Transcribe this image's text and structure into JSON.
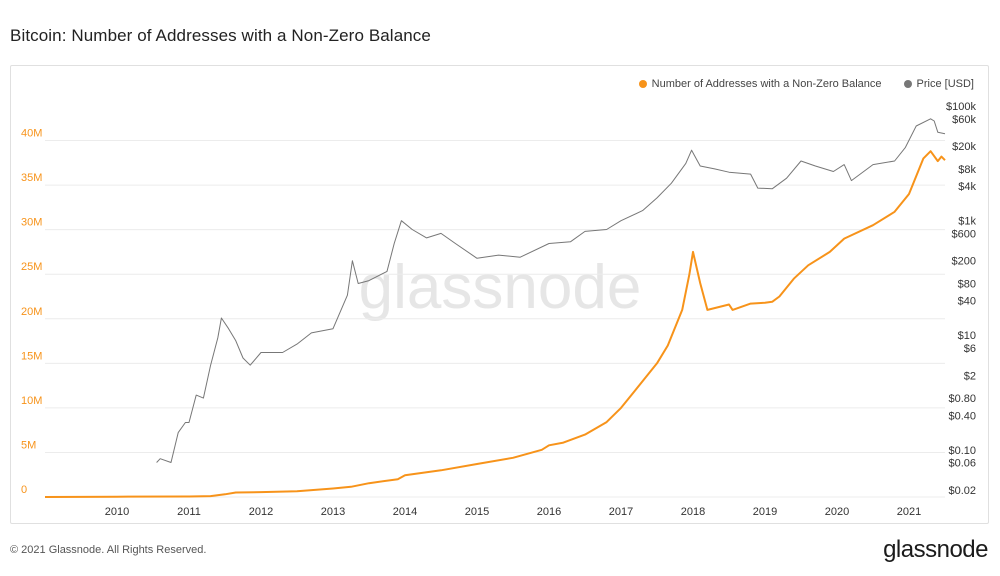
{
  "header": {
    "title": "Bitcoin: Number of Addresses with a Non-Zero Balance"
  },
  "watermark": "glassnode",
  "footer": {
    "copyright": "© 2021 Glassnode. All Rights Reserved.",
    "brand": "glassnode"
  },
  "chart_data": {
    "type": "line",
    "title": "Bitcoin: Number of Addresses with a Non-Zero Balance",
    "xlabel": "",
    "legend_position": "top-right",
    "grid": "horizontal",
    "x_ticks": [
      "2010",
      "2011",
      "2012",
      "2013",
      "2014",
      "2015",
      "2016",
      "2017",
      "2018",
      "2019",
      "2020",
      "2021"
    ],
    "xlim": [
      2009.0,
      2021.5
    ],
    "y_left": {
      "ticks": [
        0,
        5000000,
        10000000,
        15000000,
        20000000,
        25000000,
        30000000,
        35000000,
        40000000
      ],
      "tick_labels": [
        "0",
        "5M",
        "10M",
        "15M",
        "20M",
        "25M",
        "30M",
        "35M",
        "40M"
      ],
      "ylim": [
        0,
        45000000
      ],
      "color": "#f7931a"
    },
    "y_right": {
      "scale": "log",
      "ticks": [
        0.02,
        0.06,
        0.1,
        0.4,
        0.8,
        2,
        6,
        10,
        40,
        80,
        200,
        600,
        1000,
        4000,
        8000,
        20000,
        60000,
        100000
      ],
      "tick_labels": [
        "$0.02",
        "$0.06",
        "$0.10",
        "$0.40",
        "$0.80",
        "$2",
        "$6",
        "$10",
        "$40",
        "$80",
        "$200",
        "$600",
        "$1k",
        "$4k",
        "$8k",
        "$20k",
        "$60k",
        "$100k"
      ],
      "ylim": [
        0.015,
        150000
      ],
      "color": "#555555"
    },
    "series": [
      {
        "name": "Number of Addresses with a Non-Zero Balance",
        "axis": "left",
        "color": "#f7931a",
        "points": [
          [
            2009.0,
            0
          ],
          [
            2010.0,
            30000
          ],
          [
            2011.0,
            60000
          ],
          [
            2011.3,
            100000
          ],
          [
            2011.5,
            300000
          ],
          [
            2011.65,
            500000
          ],
          [
            2012.0,
            550000
          ],
          [
            2012.5,
            650000
          ],
          [
            2013.0,
            950000
          ],
          [
            2013.25,
            1150000
          ],
          [
            2013.5,
            1550000
          ],
          [
            2013.9,
            2000000
          ],
          [
            2014.0,
            2450000
          ],
          [
            2014.5,
            3000000
          ],
          [
            2015.0,
            3700000
          ],
          [
            2015.5,
            4400000
          ],
          [
            2015.9,
            5300000
          ],
          [
            2016.0,
            5800000
          ],
          [
            2016.2,
            6100000
          ],
          [
            2016.5,
            7000000
          ],
          [
            2016.8,
            8400000
          ],
          [
            2017.0,
            10000000
          ],
          [
            2017.2,
            12000000
          ],
          [
            2017.5,
            15000000
          ],
          [
            2017.65,
            17000000
          ],
          [
            2017.85,
            21000000
          ],
          [
            2017.95,
            25000000
          ],
          [
            2018.0,
            27500000
          ],
          [
            2018.1,
            24000000
          ],
          [
            2018.2,
            21000000
          ],
          [
            2018.25,
            21100000
          ],
          [
            2018.5,
            21600000
          ],
          [
            2018.55,
            21000000
          ],
          [
            2018.8,
            21700000
          ],
          [
            2019.0,
            21800000
          ],
          [
            2019.1,
            21900000
          ],
          [
            2019.2,
            22500000
          ],
          [
            2019.4,
            24500000
          ],
          [
            2019.6,
            26000000
          ],
          [
            2019.9,
            27500000
          ],
          [
            2020.1,
            29000000
          ],
          [
            2020.5,
            30500000
          ],
          [
            2020.8,
            32000000
          ],
          [
            2021.0,
            34000000
          ],
          [
            2021.2,
            38000000
          ],
          [
            2021.3,
            38800000
          ],
          [
            2021.4,
            37700000
          ],
          [
            2021.45,
            38200000
          ],
          [
            2021.5,
            37800000
          ]
        ]
      },
      {
        "name": "Price [USD]",
        "axis": "right",
        "color": "#777777",
        "points": [
          [
            2010.55,
            0.06
          ],
          [
            2010.6,
            0.07
          ],
          [
            2010.75,
            0.06
          ],
          [
            2010.85,
            0.2
          ],
          [
            2010.95,
            0.3
          ],
          [
            2011.0,
            0.3
          ],
          [
            2011.1,
            0.9
          ],
          [
            2011.2,
            0.8
          ],
          [
            2011.3,
            3
          ],
          [
            2011.4,
            9
          ],
          [
            2011.45,
            20
          ],
          [
            2011.55,
            13
          ],
          [
            2011.65,
            8
          ],
          [
            2011.75,
            4
          ],
          [
            2011.85,
            3
          ],
          [
            2012.0,
            5
          ],
          [
            2012.3,
            5
          ],
          [
            2012.5,
            7
          ],
          [
            2012.7,
            11
          ],
          [
            2013.0,
            13
          ],
          [
            2013.2,
            50
          ],
          [
            2013.27,
            200
          ],
          [
            2013.35,
            80
          ],
          [
            2013.5,
            90
          ],
          [
            2013.75,
            130
          ],
          [
            2013.85,
            400
          ],
          [
            2013.95,
            1000
          ],
          [
            2014.1,
            700
          ],
          [
            2014.3,
            500
          ],
          [
            2014.5,
            600
          ],
          [
            2014.7,
            400
          ],
          [
            2015.0,
            220
          ],
          [
            2015.3,
            250
          ],
          [
            2015.6,
            230
          ],
          [
            2016.0,
            400
          ],
          [
            2016.3,
            430
          ],
          [
            2016.5,
            650
          ],
          [
            2016.8,
            700
          ],
          [
            2017.0,
            1000
          ],
          [
            2017.3,
            1500
          ],
          [
            2017.5,
            2500
          ],
          [
            2017.7,
            4500
          ],
          [
            2017.9,
            10000
          ],
          [
            2017.98,
            17000
          ],
          [
            2018.1,
            9000
          ],
          [
            2018.3,
            8000
          ],
          [
            2018.5,
            7000
          ],
          [
            2018.8,
            6500
          ],
          [
            2018.9,
            3700
          ],
          [
            2019.1,
            3600
          ],
          [
            2019.3,
            5500
          ],
          [
            2019.5,
            11000
          ],
          [
            2019.7,
            9000
          ],
          [
            2019.95,
            7200
          ],
          [
            2020.1,
            9500
          ],
          [
            2020.2,
            5000
          ],
          [
            2020.5,
            9500
          ],
          [
            2020.8,
            11000
          ],
          [
            2020.95,
            19000
          ],
          [
            2021.1,
            45000
          ],
          [
            2021.3,
            60000
          ],
          [
            2021.35,
            55000
          ],
          [
            2021.4,
            35000
          ],
          [
            2021.5,
            33000
          ]
        ]
      }
    ]
  }
}
